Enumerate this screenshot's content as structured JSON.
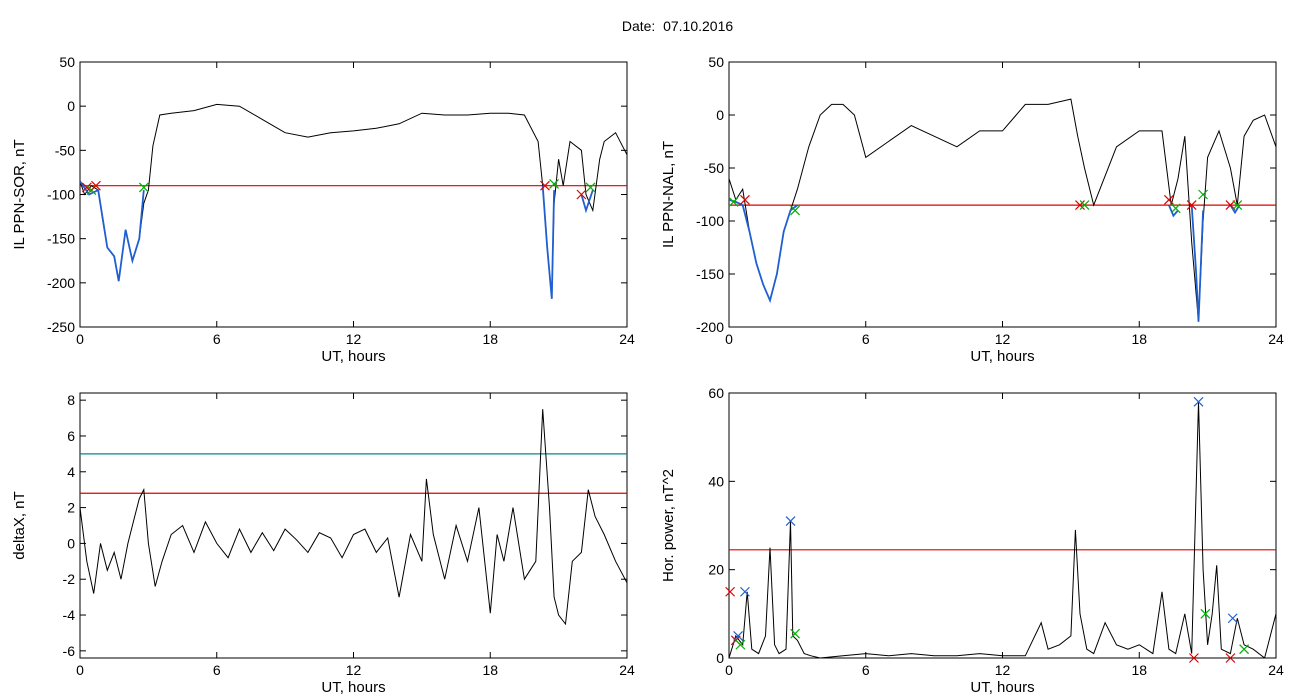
{
  "figure": {
    "date_label": "Date:  07.10.2016"
  },
  "colors": {
    "trace": "#000000",
    "threshold": "#e00000",
    "threshold2": "#008a8a",
    "segment": "#1f5fd0",
    "marker_red": "#e00000",
    "marker_green": "#00b000",
    "marker_blue": "#1f5fd0"
  },
  "chart_data": [
    {
      "id": "sor",
      "type": "line",
      "xlabel": "UT, hours",
      "ylabel": "IL PPN-SOR, nT",
      "xlim": [
        0,
        24
      ],
      "ylim": [
        -250,
        50
      ],
      "xticks": [
        "0",
        "6",
        "12",
        "18",
        "24"
      ],
      "yticks": [
        "50",
        "0",
        "-50",
        "-100",
        "-150",
        "-200",
        "-250"
      ],
      "ytick_values": [
        50,
        0,
        -50,
        -100,
        -150,
        -200,
        -250
      ],
      "xtick_values": [
        0,
        6,
        12,
        18,
        24
      ],
      "thresholds": [
        {
          "y": -90,
          "color": "red"
        }
      ],
      "series": [
        {
          "x": [
            0,
            0.2,
            0.5,
            0.8,
            1.0,
            1.2,
            1.5,
            1.7,
            2.0,
            2.3,
            2.6,
            2.8,
            3.0,
            3.2,
            3.5,
            4,
            5,
            6,
            7,
            8,
            9,
            10,
            11,
            12,
            13,
            14,
            15,
            16,
            17,
            18,
            18.8,
            19.5,
            20.1,
            20.3,
            20.5,
            20.7,
            20.8,
            21.0,
            21.2,
            21.5,
            22.0,
            22.2,
            22.5,
            22.8,
            23,
            23.5,
            24
          ],
          "y": [
            -85,
            -100,
            -90,
            -95,
            -130,
            -160,
            -170,
            -198,
            -140,
            -175,
            -150,
            -110,
            -95,
            -45,
            -10,
            -8,
            -5,
            2,
            0,
            -15,
            -30,
            -35,
            -30,
            -28,
            -25,
            -20,
            -8,
            -10,
            -10,
            -8,
            -8,
            -10,
            -40,
            -90,
            -160,
            -218,
            -110,
            -60,
            -90,
            -40,
            -50,
            -100,
            -118,
            -60,
            -40,
            -30,
            -55
          ]
        }
      ],
      "segments": [
        {
          "x": [
            0,
            0.4,
            0.8
          ],
          "y": [
            -85,
            -100,
            -95
          ]
        },
        {
          "x": [
            0.8,
            1.2,
            1.5,
            1.7,
            2.0,
            2.3,
            2.6,
            2.8
          ],
          "y": [
            -95,
            -160,
            -170,
            -198,
            -140,
            -175,
            -150,
            -95
          ]
        },
        {
          "x": [
            20.3,
            20.5,
            20.7,
            20.8
          ],
          "y": [
            -90,
            -160,
            -218,
            -95
          ]
        },
        {
          "x": [
            22.0,
            22.2,
            22.5
          ],
          "y": [
            -100,
            -118,
            -95
          ]
        }
      ],
      "markers": [
        {
          "x": 0.3,
          "y": -92,
          "c": "red"
        },
        {
          "x": 0.5,
          "y": -95,
          "c": "green"
        },
        {
          "x": 0.7,
          "y": -90,
          "c": "red"
        },
        {
          "x": 2.8,
          "y": -92,
          "c": "green"
        },
        {
          "x": 20.4,
          "y": -90,
          "c": "red"
        },
        {
          "x": 20.8,
          "y": -88,
          "c": "green"
        },
        {
          "x": 22.0,
          "y": -100,
          "c": "red"
        },
        {
          "x": 22.4,
          "y": -92,
          "c": "green"
        }
      ]
    },
    {
      "id": "nal",
      "type": "line",
      "xlabel": "UT, hours",
      "ylabel": "IL PPN-NAL, nT",
      "xlim": [
        0,
        24
      ],
      "ylim": [
        -200,
        50
      ],
      "xticks": [
        "0",
        "6",
        "12",
        "18",
        "24"
      ],
      "yticks": [
        "50",
        "0",
        "-50",
        "-100",
        "-150",
        "-200"
      ],
      "ytick_values": [
        50,
        0,
        -50,
        -100,
        -150,
        -200
      ],
      "xtick_values": [
        0,
        6,
        12,
        18,
        24
      ],
      "thresholds": [
        {
          "y": -85,
          "color": "red"
        }
      ],
      "series": [
        {
          "x": [
            0,
            0.3,
            0.6,
            0.9,
            1.2,
            1.5,
            1.8,
            2.1,
            2.4,
            2.7,
            3.0,
            3.5,
            4.0,
            4.5,
            5.0,
            5.5,
            6,
            7,
            8,
            9,
            10,
            11,
            12,
            13,
            14,
            15,
            15.3,
            15.6,
            16,
            17,
            18,
            19,
            19.4,
            19.7,
            20,
            20.3,
            20.6,
            20.8,
            21,
            21.5,
            22,
            22.3,
            22.6,
            23,
            23.5,
            24
          ],
          "y": [
            -60,
            -80,
            -70,
            -110,
            -140,
            -160,
            -175,
            -150,
            -110,
            -90,
            -70,
            -30,
            0,
            10,
            10,
            0,
            -40,
            -25,
            -10,
            -20,
            -30,
            -15,
            -15,
            10,
            10,
            15,
            -20,
            -50,
            -85,
            -30,
            -15,
            -15,
            -85,
            -60,
            -20,
            -120,
            -195,
            -100,
            -40,
            -15,
            -50,
            -85,
            -20,
            -5,
            0,
            -30
          ]
        }
      ],
      "segments": [
        {
          "x": [
            0,
            0.3,
            0.6,
            0.9,
            1.2,
            1.5,
            1.8,
            2.1,
            2.4,
            2.7,
            3.0
          ],
          "y": [
            -80,
            -82,
            -85,
            -110,
            -140,
            -160,
            -175,
            -150,
            -110,
            -90,
            -85
          ]
        },
        {
          "x": [
            19.3,
            19.5,
            19.7
          ],
          "y": [
            -85,
            -95,
            -90
          ]
        },
        {
          "x": [
            20.3,
            20.5,
            20.6,
            20.8
          ],
          "y": [
            -85,
            -150,
            -195,
            -90
          ]
        },
        {
          "x": [
            22.0,
            22.2,
            22.4
          ],
          "y": [
            -85,
            -92,
            -85
          ]
        }
      ],
      "markers": [
        {
          "x": 0.2,
          "y": -82,
          "c": "green"
        },
        {
          "x": 0.7,
          "y": -80,
          "c": "red"
        },
        {
          "x": 2.9,
          "y": -90,
          "c": "green"
        },
        {
          "x": 15.4,
          "y": -85,
          "c": "red"
        },
        {
          "x": 15.6,
          "y": -85,
          "c": "green"
        },
        {
          "x": 19.3,
          "y": -80,
          "c": "red"
        },
        {
          "x": 19.6,
          "y": -88,
          "c": "green"
        },
        {
          "x": 20.3,
          "y": -85,
          "c": "red"
        },
        {
          "x": 20.8,
          "y": -75,
          "c": "green"
        },
        {
          "x": 22.0,
          "y": -85,
          "c": "red"
        },
        {
          "x": 22.3,
          "y": -85,
          "c": "green"
        }
      ]
    },
    {
      "id": "deltax",
      "type": "line",
      "xlabel": "UT, hours",
      "ylabel": "deltaX, nT",
      "xlim": [
        0,
        24
      ],
      "ylim": [
        -6.4,
        8.4
      ],
      "xticks": [
        "0",
        "6",
        "12",
        "18",
        "24"
      ],
      "yticks": [
        "8",
        "6",
        "4",
        "2",
        "0",
        "-2",
        "-4",
        "-6"
      ],
      "ytick_values": [
        8,
        6,
        4,
        2,
        0,
        -2,
        -4,
        -6
      ],
      "xtick_values": [
        0,
        6,
        12,
        18,
        24
      ],
      "thresholds": [
        {
          "y": 5.0,
          "color": "teal"
        },
        {
          "y": 2.8,
          "color": "red"
        }
      ],
      "series": [
        {
          "x": [
            0,
            0.3,
            0.6,
            0.9,
            1.2,
            1.5,
            1.8,
            2.1,
            2.4,
            2.6,
            2.8,
            3.0,
            3.3,
            3.6,
            4,
            4.5,
            5,
            5.5,
            6,
            6.5,
            7,
            7.5,
            8,
            8.5,
            9,
            9.5,
            10,
            10.5,
            11,
            11.5,
            12,
            12.5,
            13,
            13.5,
            14,
            14.5,
            15,
            15.2,
            15.5,
            16,
            16.5,
            17,
            17.5,
            18,
            18.3,
            18.6,
            19,
            19.5,
            20,
            20.3,
            20.6,
            20.8,
            21.0,
            21.3,
            21.6,
            22,
            22.3,
            22.6,
            23,
            23.5,
            24
          ],
          "y": [
            2,
            -1,
            -2.8,
            0,
            -1.5,
            -0.5,
            -2,
            0,
            1.5,
            2.5,
            3,
            0,
            -2.4,
            -1,
            0.5,
            1,
            -0.5,
            1.2,
            0,
            -0.8,
            0.8,
            -0.5,
            0.6,
            -0.4,
            0.8,
            0.2,
            -0.5,
            0.6,
            0.3,
            -0.8,
            0.5,
            0.8,
            -0.5,
            0.3,
            -3,
            0.5,
            -1,
            3.6,
            0.5,
            -2,
            1,
            -1,
            2,
            -3.9,
            0.5,
            -1,
            2,
            -2,
            -1,
            7.5,
            2,
            -3,
            -4,
            -4.5,
            -1,
            -0.5,
            3,
            1.5,
            0.5,
            -1,
            -2.2
          ]
        }
      ],
      "segments": [],
      "markers": []
    },
    {
      "id": "power",
      "type": "line",
      "xlabel": "UT, hours",
      "ylabel": "Hor. power, nT^2",
      "xlim": [
        0,
        24
      ],
      "ylim": [
        0,
        60
      ],
      "xticks": [
        "0",
        "6",
        "12",
        "18",
        "24"
      ],
      "yticks": [
        "60",
        "40",
        "20",
        "0"
      ],
      "ytick_values": [
        60,
        40,
        20,
        0
      ],
      "xtick_values": [
        0,
        6,
        12,
        18,
        24
      ],
      "thresholds": [
        {
          "y": 24.5,
          "color": "red"
        }
      ],
      "series": [
        {
          "x": [
            0,
            0.3,
            0.6,
            0.8,
            1.0,
            1.3,
            1.6,
            1.8,
            2.0,
            2.2,
            2.5,
            2.7,
            2.8,
            3.0,
            3.3,
            3.6,
            4,
            5,
            6,
            7,
            8,
            9,
            10,
            11,
            12,
            13,
            13.7,
            14,
            14.5,
            15,
            15.2,
            15.4,
            15.7,
            16,
            16.5,
            17,
            17.5,
            18,
            18.3,
            18.6,
            19,
            19.3,
            19.6,
            20,
            20.3,
            20.6,
            20.8,
            21,
            21.2,
            21.4,
            21.6,
            22,
            22.3,
            22.6,
            23,
            23.5,
            24
          ],
          "y": [
            0,
            5,
            3,
            15,
            2,
            1,
            5,
            25,
            3,
            1,
            2,
            31,
            5,
            4,
            1,
            0.5,
            0,
            0.5,
            1,
            0.5,
            1,
            0.5,
            0.5,
            1,
            0.5,
            0.5,
            8,
            2,
            3,
            5,
            29,
            10,
            2,
            1,
            8,
            3,
            2,
            3,
            2,
            1,
            15,
            2,
            1,
            10,
            1,
            58,
            20,
            3,
            10,
            21,
            2,
            1,
            9,
            3,
            2,
            0,
            10
          ]
        }
      ],
      "segments": [],
      "markers": [
        {
          "x": 0.05,
          "y": 15,
          "c": "red"
        },
        {
          "x": 0.3,
          "y": 4,
          "c": "red"
        },
        {
          "x": 0.4,
          "y": 5,
          "c": "blue"
        },
        {
          "x": 0.5,
          "y": 3,
          "c": "green"
        },
        {
          "x": 0.7,
          "y": 15,
          "c": "blue"
        },
        {
          "x": 2.7,
          "y": 31,
          "c": "blue"
        },
        {
          "x": 2.9,
          "y": 5.5,
          "c": "green"
        },
        {
          "x": 20.4,
          "y": 0,
          "c": "red"
        },
        {
          "x": 20.6,
          "y": 58,
          "c": "blue"
        },
        {
          "x": 20.9,
          "y": 10,
          "c": "green"
        },
        {
          "x": 22.0,
          "y": 0,
          "c": "red"
        },
        {
          "x": 22.1,
          "y": 9,
          "c": "blue"
        },
        {
          "x": 22.6,
          "y": 2,
          "c": "green"
        }
      ]
    }
  ]
}
